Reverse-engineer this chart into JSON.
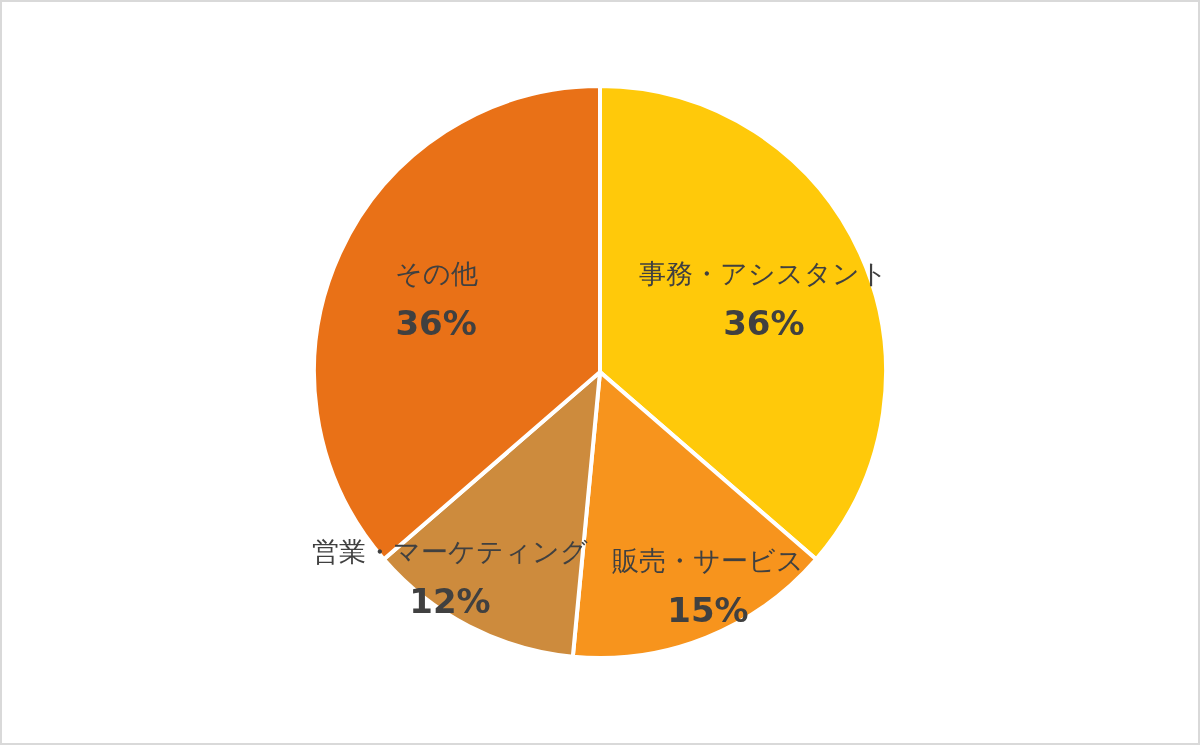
{
  "chart_data": {
    "type": "pie",
    "categories": [
      "事務・アシスタント",
      "販売・サービス",
      "営業・マーケティング",
      "その他"
    ],
    "values": [
      36,
      15,
      12,
      36
    ],
    "colors": [
      "#ffc90a",
      "#f7941d",
      "#cd8b3d",
      "#e97117"
    ],
    "value_labels": [
      "36%",
      "15%",
      "12%",
      "36%"
    ]
  }
}
